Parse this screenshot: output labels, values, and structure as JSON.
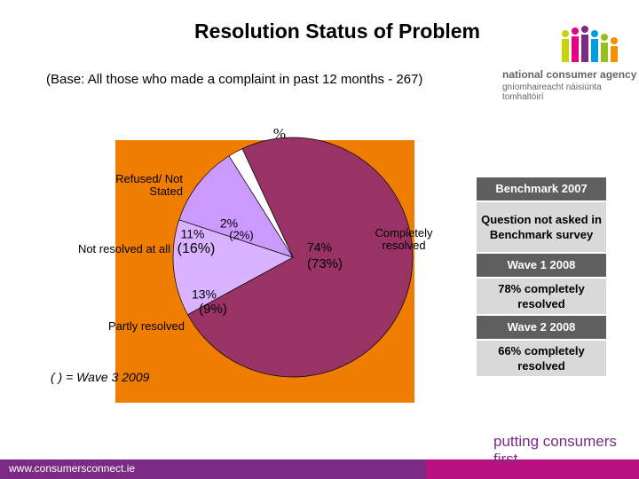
{
  "chart_data": {
    "type": "pie",
    "title": "Resolution Status of Problem",
    "subtitle": "(Base: All those who made a complaint in past 12 months - 267)",
    "axis_label": "%",
    "categories": [
      "Completely resolved",
      "Partly resolved",
      "Not resolved at all",
      "Refused/ Not Stated"
    ],
    "series": [
      {
        "values": [
          74,
          13,
          11,
          2
        ],
        "value_labels": [
          "74%",
          "13%",
          "11%",
          "2%"
        ],
        "colors": [
          "#993366",
          "#d9b3ff",
          "#cc99ff",
          "#ffffff"
        ]
      },
      {
        "values": [
          73,
          9,
          16,
          2
        ],
        "value_labels": [
          "(73%)",
          "(9%)",
          "(16%)",
          "(2%)"
        ]
      }
    ],
    "note": "( ) = Wave 3 2009",
    "background": "#ee7d00"
  },
  "sidebar": [
    {
      "header": "Benchmark 2007",
      "text": "Question not asked in Benchmark survey"
    },
    {
      "header": "Wave 1 2008",
      "text": "78% completely resolved"
    },
    {
      "header": "Wave 2 2008",
      "text": "66% completely resolved"
    }
  ],
  "branding": {
    "name": "national consumer agency",
    "irish_name": "gníomhaireacht náisiúnta tomhaltóirí",
    "slogan": "putting consumers first",
    "url": "www.consumersconnect.ie"
  }
}
